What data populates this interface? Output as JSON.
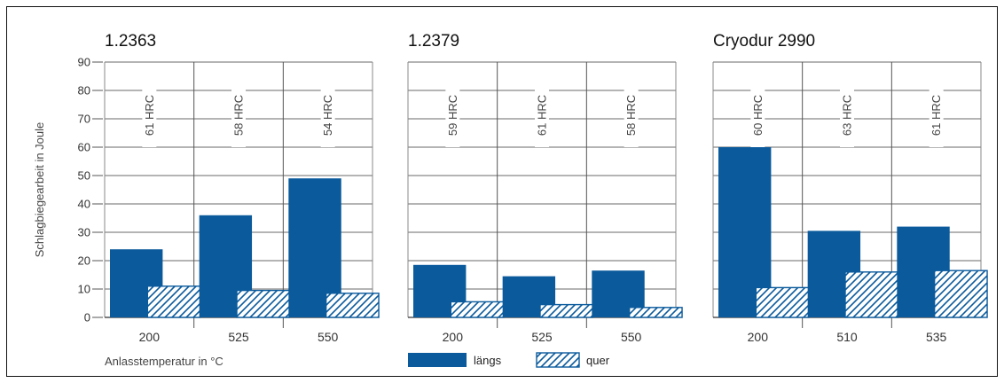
{
  "chart_data": {
    "type": "bar",
    "ylabel": "Schlagbiegearbeit in Joule",
    "xlabel": "Anlasstemperatur in °C",
    "ylim": [
      0,
      90
    ],
    "yticks": [
      0,
      10,
      20,
      30,
      40,
      50,
      60,
      70,
      80,
      90
    ],
    "grid": true,
    "legend": {
      "placement": "bottom-center",
      "entries": [
        {
          "name": "längs",
          "fill": "#0a5a9c",
          "pattern": "solid"
        },
        {
          "name": "quer",
          "fill": "#0a5a9c",
          "pattern": "hatched"
        }
      ]
    },
    "panels": [
      {
        "title": "1.2363",
        "categories": [
          "200",
          "525",
          "550"
        ],
        "hardness": [
          "61 HRC",
          "58 HRC",
          "54 HRC"
        ],
        "series": [
          {
            "name": "längs",
            "values": [
              24,
              36,
              49
            ]
          },
          {
            "name": "quer",
            "values": [
              11,
              9.5,
              8.5
            ]
          }
        ]
      },
      {
        "title": "1.2379",
        "categories": [
          "200",
          "525",
          "550"
        ],
        "hardness": [
          "59 HRC",
          "61 HRC",
          "58 HRC"
        ],
        "series": [
          {
            "name": "längs",
            "values": [
              18.5,
              14.5,
              16.5
            ]
          },
          {
            "name": "quer",
            "values": [
              5.5,
              4.5,
              3.5
            ]
          }
        ]
      },
      {
        "title": "Cryodur 2990",
        "categories": [
          "200",
          "510",
          "535"
        ],
        "hardness": [
          "60 HRC",
          "63 HRC",
          "61 HRC"
        ],
        "series": [
          {
            "name": "längs",
            "values": [
              60,
              30.5,
              32
            ]
          },
          {
            "name": "quer",
            "values": [
              10.5,
              16,
              16.5
            ]
          }
        ]
      }
    ]
  }
}
